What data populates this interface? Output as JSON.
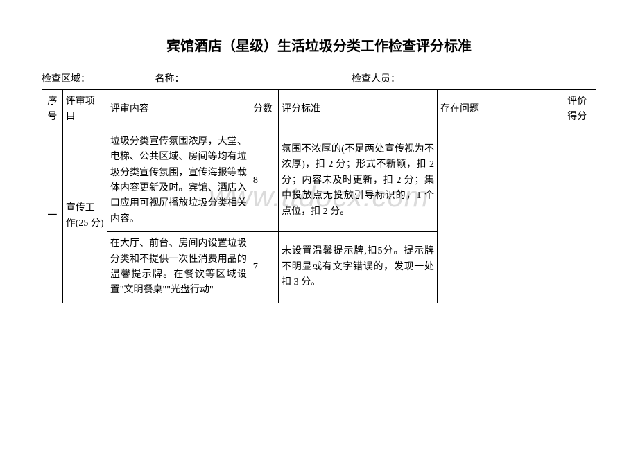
{
  "title": "宾馆酒店（星级）生活垃圾分类工作检查评分标准",
  "watermark": "www.ttdocx.com",
  "info": {
    "area_label": "检查区域：",
    "name_label": "名称：",
    "inspector_label": "检查人员："
  },
  "table": {
    "headers": {
      "seq": "序号",
      "category": "评审项目",
      "content": "评审内容",
      "score": "分数",
      "criteria": "评分标准",
      "issues": "存在问题",
      "final": "评价得分"
    },
    "styling": {
      "border_color": "#000000",
      "font_size": 14,
      "col_widths": {
        "seq": 26,
        "category": 56,
        "content": 180,
        "score": 36,
        "criteria": 200,
        "issues": 160,
        "final": 40
      }
    },
    "rows": [
      {
        "seq": "一",
        "category": "宣传工作(25 分)",
        "items": [
          {
            "content": "垃圾分类宣传氛围浓厚，大堂、电梯、公共区域、房间等均有垃圾分类宣传氛围，宣传海报等载体内容更新及时。宾馆、酒店入口应用可视屏播放垃圾分类相关内容。",
            "score": "8",
            "criteria": "氛围不浓厚的(不足两处宣传视为不浓厚)，扣 2 分；形式不新颖，扣 2 分；内容未及时更新，扣 2 分；集中投放点无投放引导标识的，1 个点位，扣 2 分。"
          },
          {
            "content": "在大厅、前台、房间内设置垃圾分类和不提供一次性消费用品的温馨提示牌。在餐饮等区域设置\"文明餐桌\"\"光盘行动\"",
            "score": "7",
            "criteria": "未设置温馨提示牌,扣5分。提示牌不明显或有文字错误的，发现一处扣 3 分。"
          }
        ]
      }
    ]
  }
}
